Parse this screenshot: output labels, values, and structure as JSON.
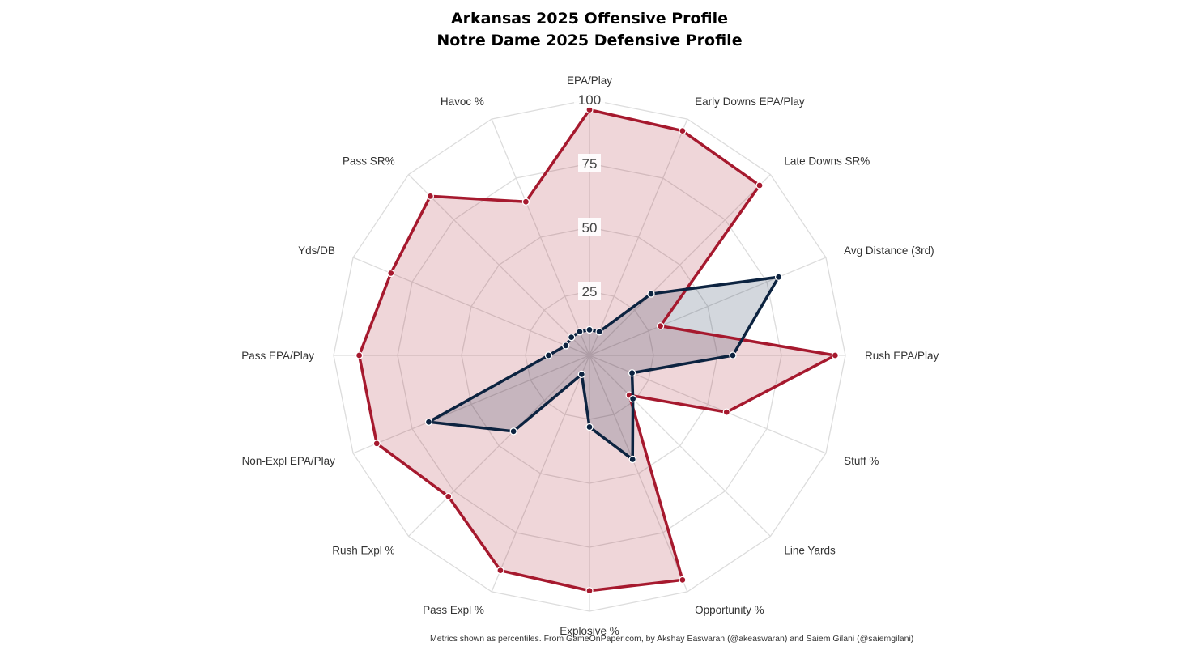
{
  "title_lines": [
    "Arkansas 2025 Offensive Profile",
    "Notre Dame 2025 Defensive Profile"
  ],
  "footnote": "Metrics shown as percentiles. From GameOnPaper.com, by Akshay Easwaran (@akeaswaran) and Saiem Gilani (@saiemgilani)",
  "chart_data": {
    "type": "radar",
    "title": "Arkansas 2025 Offensive Profile\nNotre Dame 2025 Defensive Profile",
    "axes": [
      "EPA/Play",
      "Early Downs EPA/Play",
      "Late Downs SR%",
      "Avg Distance (3rd)",
      "Rush EPA/Play",
      "Stuff %",
      "Line Yards",
      "Opportunity %",
      "Explosive %",
      "Pass Expl %",
      "Rush Expl %",
      "Non-Expl EPA/Play",
      "Pass EPA/Play",
      "Yds/DB",
      "Pass SR%",
      "Havoc %"
    ],
    "radial_ticks": [
      25,
      50,
      75,
      100
    ],
    "rlim": [
      0,
      100
    ],
    "grid": true,
    "legend": "none",
    "series": [
      {
        "values": [
          96,
          95,
          94,
          30,
          96,
          58,
          22,
          95,
          92,
          91,
          78,
          90,
          90,
          84,
          88,
          65
        ],
        "color": "#a6192e",
        "fill": "rgba(166,25,46,0.18)"
      },
      {
        "values": [
          10,
          10,
          34,
          80,
          56,
          18,
          24,
          44,
          28,
          8,
          42,
          68,
          16,
          10,
          10,
          10
        ],
        "color": "#0c2340",
        "fill": "rgba(12,35,64,0.18)"
      }
    ]
  }
}
